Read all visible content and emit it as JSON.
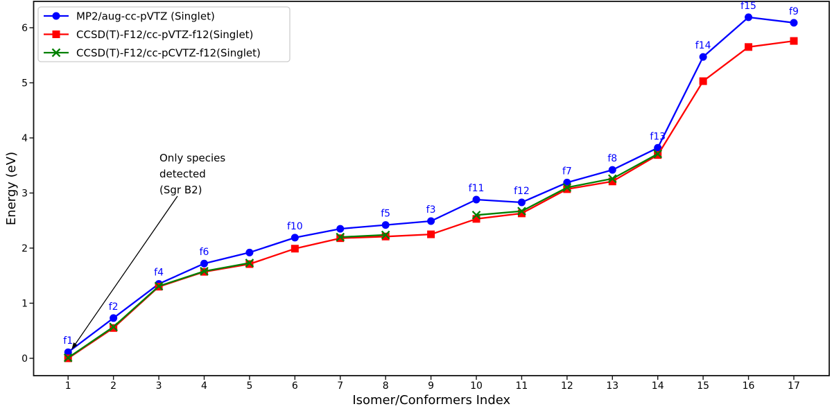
{
  "chart_data": {
    "type": "line",
    "title": "",
    "xlabel": "Isomer/Conformers Index",
    "ylabel": "Energy (eV)",
    "x": [
      1,
      2,
      3,
      4,
      5,
      6,
      7,
      8,
      9,
      10,
      11,
      12,
      13,
      14,
      15,
      16,
      17
    ],
    "xtick_labels": [
      "1",
      "2",
      "3",
      "4",
      "5",
      "6",
      "7",
      "8",
      "9",
      "10",
      "11",
      "12",
      "13",
      "14",
      "15",
      "16",
      "17"
    ],
    "yticks": [
      0,
      1,
      2,
      3,
      4,
      5,
      6
    ],
    "xlim": [
      0.24,
      17.78
    ],
    "ylim": [
      -0.315,
      6.478
    ],
    "grid": false,
    "legend_position": "upper-left",
    "series": [
      {
        "name": "MP2/aug-cc-pVTZ (Singlet)",
        "color": "#0000ff",
        "marker": "circle",
        "values": [
          0.11,
          0.73,
          1.35,
          1.72,
          1.92,
          2.19,
          2.35,
          2.42,
          2.49,
          2.88,
          2.83,
          3.19,
          3.42,
          3.82,
          5.47,
          6.19,
          6.09
        ]
      },
      {
        "name": "CCSD(T)-F12/cc-pVTZ-f12(Singlet)",
        "color": "#ff0000",
        "marker": "square",
        "values": [
          0.0,
          0.55,
          1.3,
          1.57,
          1.71,
          1.99,
          2.18,
          2.21,
          2.25,
          2.53,
          2.63,
          3.07,
          3.21,
          3.69,
          5.03,
          5.65,
          5.76
        ]
      },
      {
        "name": "CCSD(T)-F12/cc-pCVTZ-f12(Singlet)",
        "color": "#008000",
        "marker": "x",
        "values": [
          0.01,
          0.57,
          1.31,
          1.58,
          1.73,
          null,
          2.2,
          2.24,
          null,
          2.6,
          2.67,
          3.1,
          3.26,
          3.71,
          null,
          null,
          null
        ]
      }
    ],
    "point_labels": {
      "color": "#0000ff",
      "labels": [
        "f1",
        "f2",
        "f4",
        "f6",
        null,
        "f10",
        null,
        "f5",
        "f3",
        "f11",
        "f12",
        "f7",
        "f8",
        "f13",
        "f14",
        "f15",
        "f9"
      ]
    },
    "annotation": {
      "text_lines": [
        "Only species",
        "detected",
        "(Sgr B2)"
      ],
      "target_x": 1,
      "target_series": 0
    },
    "colors": {
      "axis": "#111111",
      "text": "#000000",
      "legend_border": "#cccccc"
    }
  }
}
